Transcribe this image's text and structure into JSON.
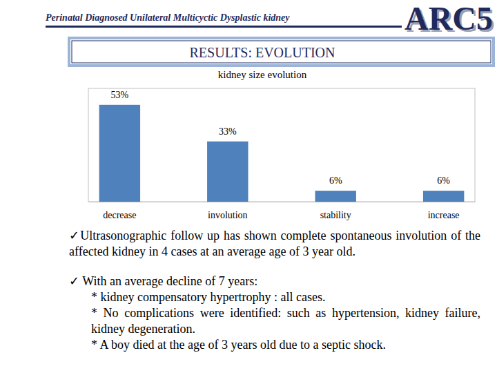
{
  "header": {
    "title": "Perinatal Diagnosed Unilateral Multicyctic Dysplastic kidney",
    "logo": "ARC5"
  },
  "section": "RESULTS: EVOLUTION",
  "chart_data": {
    "type": "bar",
    "title": "kidney size evolution",
    "categories": [
      "decrease",
      "involution",
      "stability",
      "increase"
    ],
    "values": [
      53,
      33,
      6,
      6
    ],
    "value_labels": [
      "53%",
      "33%",
      "6%",
      "6%"
    ],
    "color": "#4f81bd",
    "ylim": [
      0,
      62
    ],
    "data_labels": true,
    "tick_labels": "x"
  },
  "bullets": [
    {
      "text": "✓Ultrasonographic follow up has shown complete spontaneous involution of the affected kidney in 4 cases at an average age of 3 year old."
    },
    {
      "text": "✓ With an average decline of 7 years:",
      "items": [
        "* kidney compensatory hypertrophy : all cases.",
        "* No complications were identified: such as hypertension, kidney failure, kidney degeneration.",
        "* A boy died at the age of 3 years old due to a septic shock."
      ]
    }
  ]
}
